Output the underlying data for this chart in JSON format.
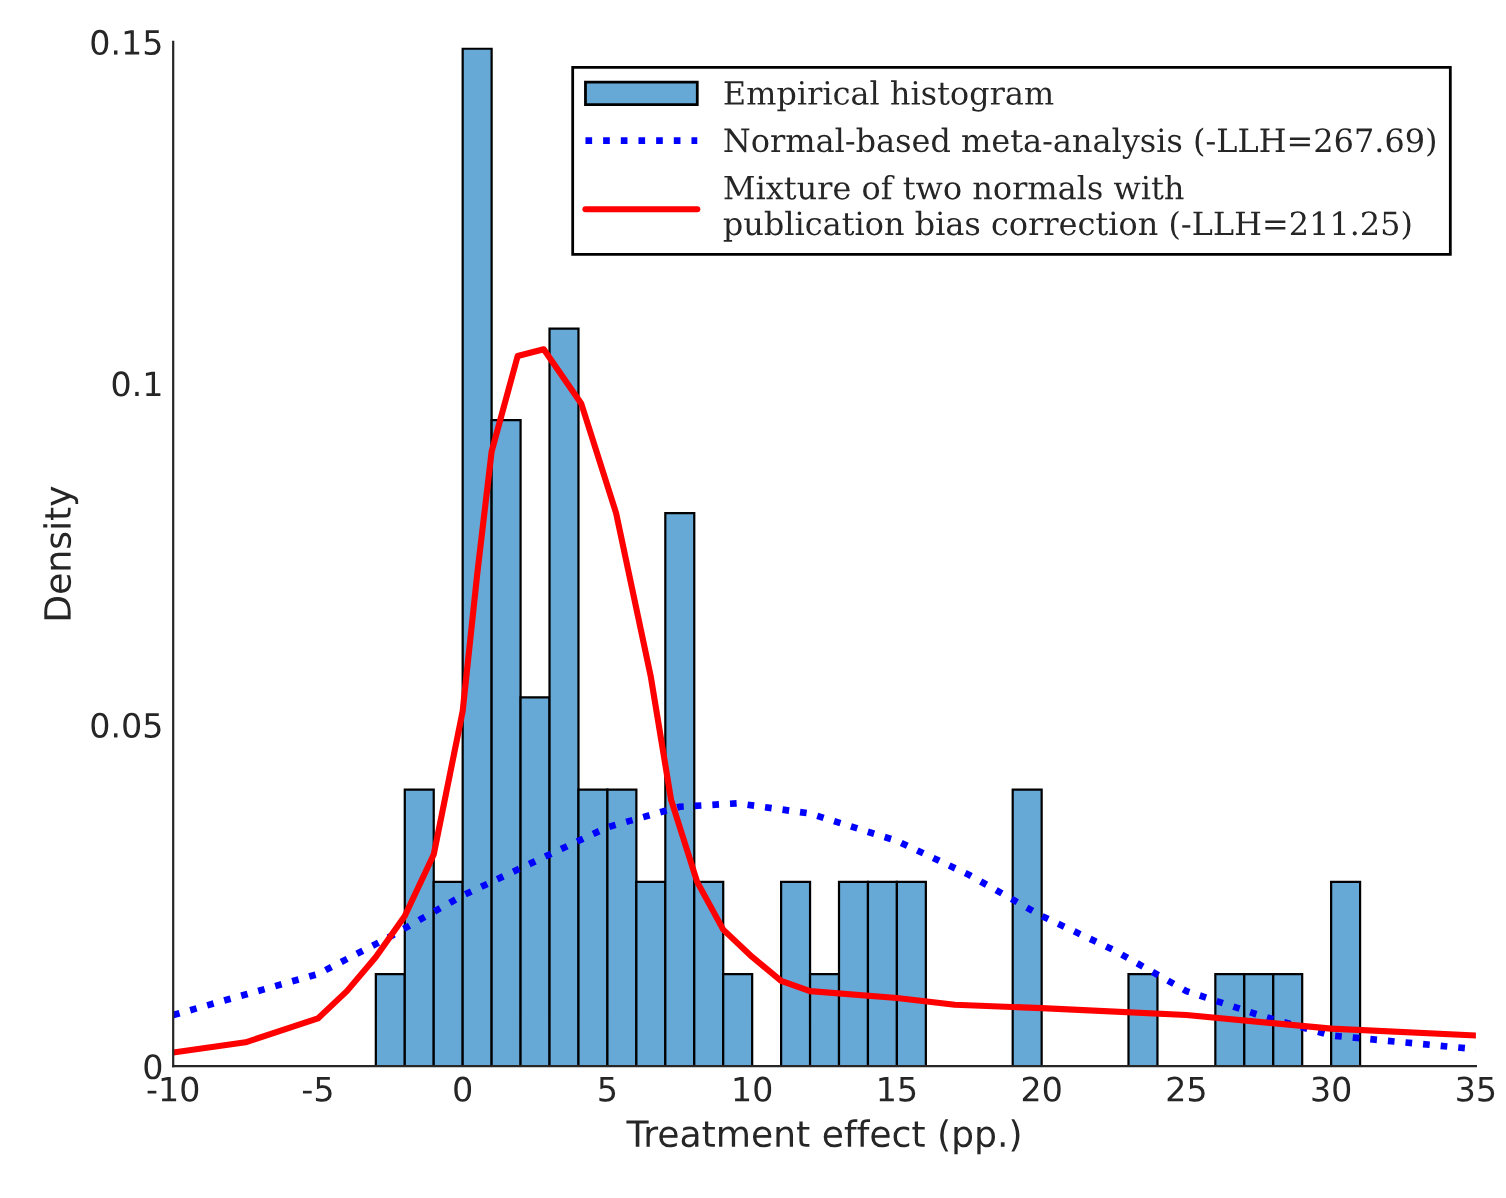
{
  "chart_data": {
    "type": "histogram",
    "xlabel": "Treatment effect (pp.)",
    "ylabel": "Density",
    "bins": [
      -3,
      -2,
      -1,
      0,
      1,
      2,
      3,
      4,
      5,
      6,
      7,
      8,
      9,
      10,
      11,
      12,
      13,
      14,
      15,
      16,
      17,
      18,
      19,
      20,
      21,
      22,
      23,
      24,
      25,
      26,
      27,
      28,
      29,
      30,
      31
    ],
    "series": [
      {
        "name": "Empirical histogram",
        "color": "#66a9d7",
        "values": [
          0.0135,
          0.0405,
          0.027,
          0.149,
          0.0946,
          0.054,
          0.108,
          0.0405,
          0.0405,
          0.027,
          0.081,
          0.027,
          0.0135,
          0,
          0.027,
          0.0135,
          0.027,
          0.027,
          0.027,
          0,
          0,
          0,
          0.0405,
          0,
          0,
          0,
          0.0135,
          0,
          0,
          0.0135,
          0.0135,
          0.0135,
          0,
          0.027
        ]
      },
      {
        "type": "line",
        "name": "Normal-based meta-analysis (-LLH=267.69)",
        "color": "#0000ff",
        "line_style": "dotted",
        "x": [
          -10,
          -7.5,
          -5,
          -2.5,
          0,
          2.5,
          5,
          7.5,
          9.5,
          12,
          15,
          17.5,
          20,
          22.5,
          25,
          27.5,
          30,
          32.5,
          35
        ],
        "values": [
          0.0075,
          0.0105,
          0.0135,
          0.019,
          0.025,
          0.03,
          0.035,
          0.038,
          0.0385,
          0.037,
          0.033,
          0.028,
          0.022,
          0.017,
          0.011,
          0.0075,
          0.0045,
          0.0035,
          0.0025
        ]
      },
      {
        "type": "line",
        "name": "Mixture of two normals with\npublication bias correction (-LLH=211.25)",
        "color": "#ff0000",
        "line_style": "solid",
        "x": [
          -10,
          -7.5,
          -5,
          -4,
          -3,
          -2,
          -1,
          0,
          0.5,
          1,
          1.9,
          2.8,
          4.1,
          5.3,
          6.5,
          7.2,
          8.1,
          9,
          10,
          11,
          12,
          15,
          17,
          20,
          25,
          30,
          35
        ],
        "values": [
          0.002,
          0.0035,
          0.007,
          0.011,
          0.016,
          0.022,
          0.031,
          0.052,
          0.072,
          0.09,
          0.104,
          0.105,
          0.097,
          0.081,
          0.057,
          0.039,
          0.027,
          0.02,
          0.016,
          0.0125,
          0.011,
          0.01,
          0.009,
          0.0085,
          0.0075,
          0.0055,
          0.0045
        ]
      }
    ],
    "xlim": [
      -10,
      35
    ],
    "xticks": [
      -10,
      -5,
      0,
      5,
      10,
      15,
      20,
      25,
      30,
      35
    ],
    "ylim": [
      0,
      0.15
    ],
    "yticks": [
      0,
      0.05,
      {
        "value": 0.1,
        "label": "0.1"
      },
      0.15
    ],
    "grid": false,
    "legend": "top right"
  }
}
